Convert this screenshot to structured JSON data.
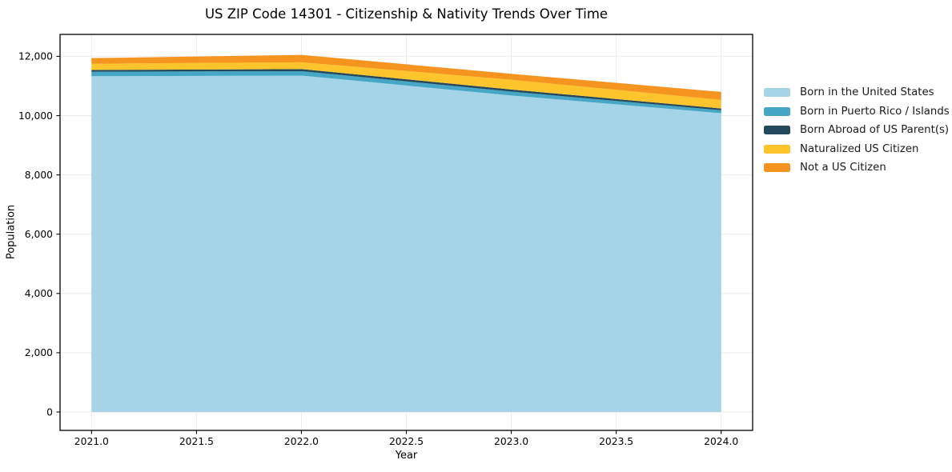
{
  "chart_data": {
    "type": "area",
    "stacked": true,
    "title": "US ZIP Code 14301 - Citizenship & Nativity Trends Over Time",
    "xlabel": "Year",
    "ylabel": "Population",
    "x": [
      2021,
      2022,
      2023,
      2024
    ],
    "series": [
      {
        "name": "Born in the United States",
        "color": "#a5d3e8",
        "values": [
          11330,
          11350,
          10680,
          10080
        ]
      },
      {
        "name": "Born in Puerto Rico / Islands",
        "color": "#46a6c6",
        "values": [
          150,
          150,
          130,
          100
        ]
      },
      {
        "name": "Born Abroad of US Parent(s)",
        "color": "#24495c",
        "values": [
          60,
          70,
          70,
          60
        ]
      },
      {
        "name": "Naturalized US Citizen",
        "color": "#fdc42c",
        "values": [
          210,
          230,
          330,
          290
        ]
      },
      {
        "name": "Not a US Citizen",
        "color": "#f5941f",
        "values": [
          190,
          250,
          200,
          270
        ]
      }
    ],
    "totals": [
      11940,
      12050,
      11410,
      10800
    ],
    "xlim": [
      2020.85,
      2024.15
    ],
    "ylim": [
      -620,
      12740
    ],
    "xticks": [
      2021.0,
      2021.5,
      2022.0,
      2022.5,
      2023.0,
      2023.5,
      2024.0
    ],
    "xtick_labels": [
      "2021.0",
      "2021.5",
      "2022.0",
      "2022.5",
      "2023.0",
      "2023.5",
      "2024.0"
    ],
    "yticks": [
      0,
      2000,
      4000,
      6000,
      8000,
      10000,
      12000
    ],
    "ytick_labels": [
      "0",
      "2,000",
      "4,000",
      "6,000",
      "8,000",
      "10,000",
      "12,000"
    ],
    "grid": true,
    "grid_color": "#ebebeb",
    "spine_color": "#000000",
    "legend_position": "right-outside"
  }
}
